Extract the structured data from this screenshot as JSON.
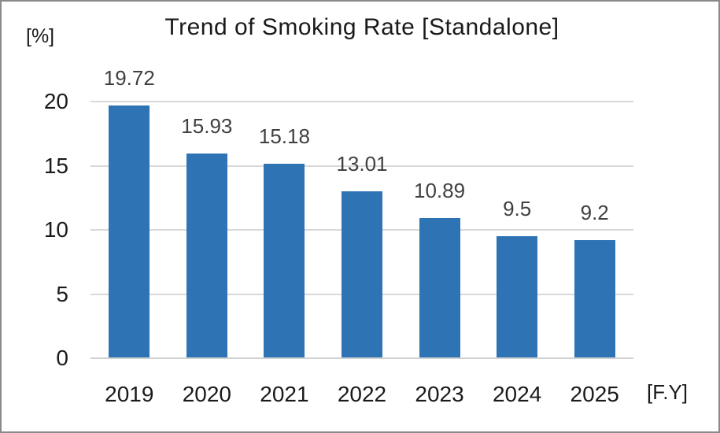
{
  "chart_data": {
    "type": "bar",
    "title": "Trend of Smoking Rate [Standalone]",
    "categories": [
      "2019",
      "2020",
      "2021",
      "2022",
      "2023",
      "2024",
      "2025"
    ],
    "values": [
      19.72,
      15.93,
      15.18,
      13.01,
      10.89,
      9.5,
      9.2
    ],
    "value_labels": [
      "19.72",
      "15.93",
      "15.18",
      "13.01",
      "10.89",
      "9.5",
      "9.2"
    ],
    "y_axis_unit": "[%]",
    "x_axis_unit": "[F.Y]",
    "y_ticks": [
      0,
      5,
      10,
      15,
      20
    ],
    "ylim": [
      0,
      20
    ],
    "grid": true,
    "legend": "none",
    "bar_color": "#2e74b5",
    "gridline_color": "#d9d9d9",
    "value_label_color": "#404040",
    "axis_text_color": "#1a1a1a"
  }
}
